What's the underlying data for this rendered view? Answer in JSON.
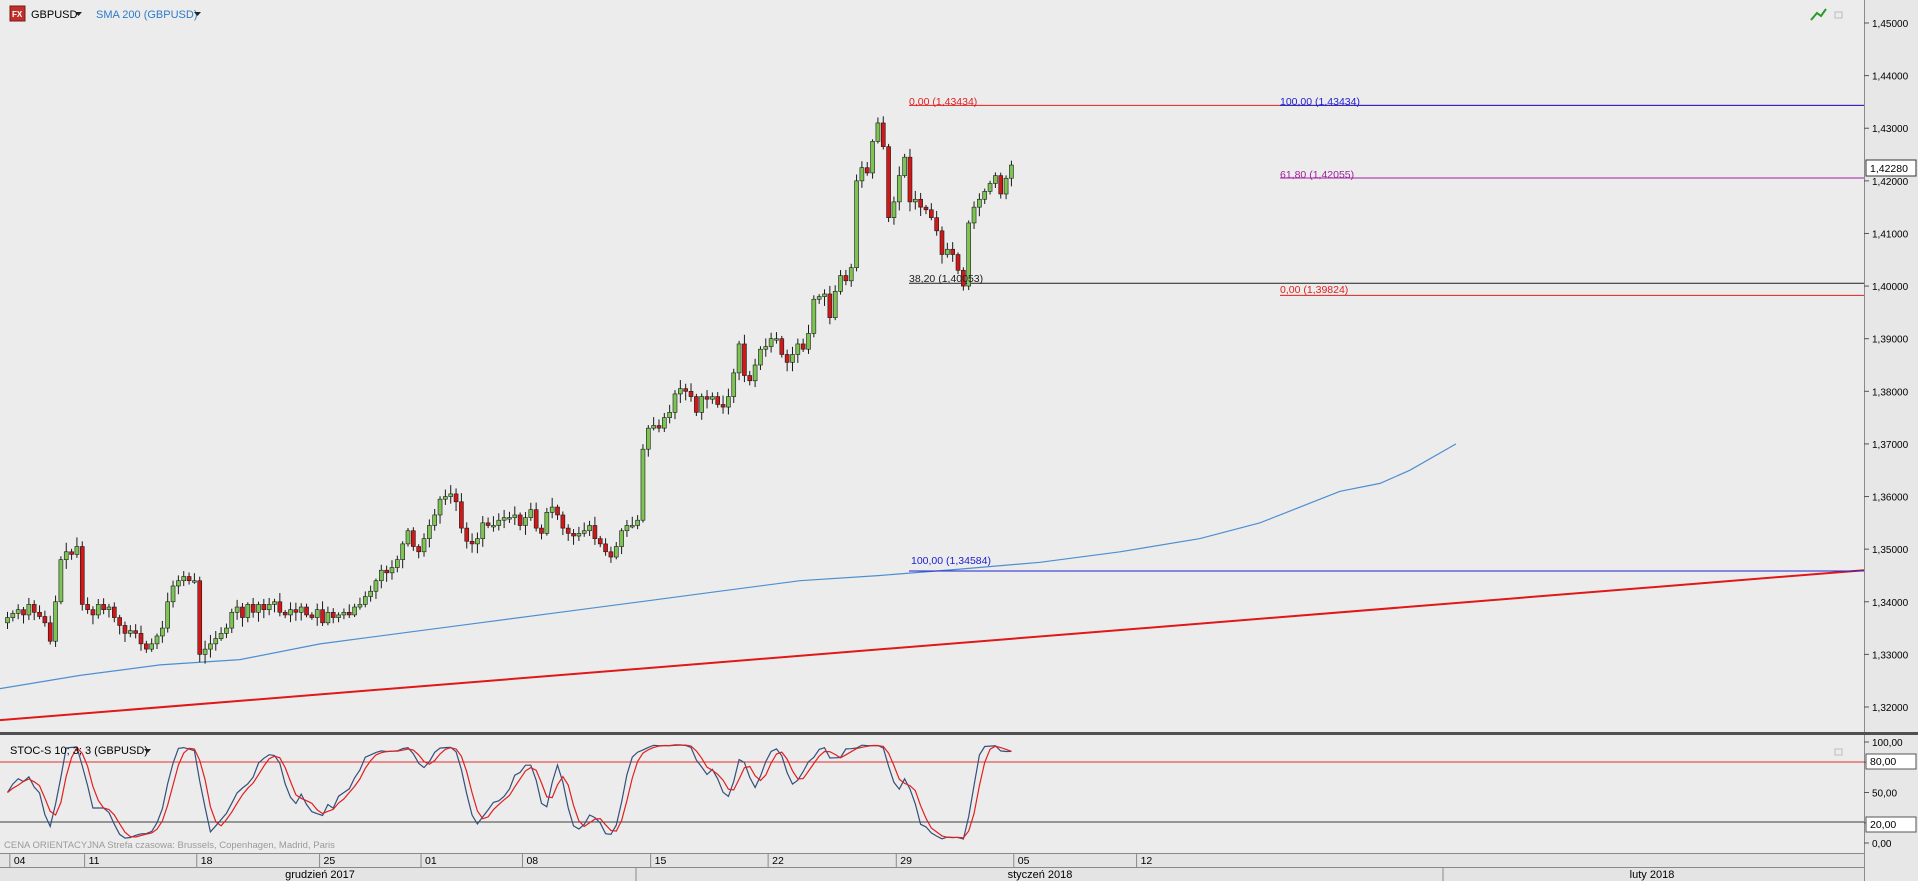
{
  "header": {
    "fx_badge": "FX",
    "symbol": "GBPUSD",
    "indicator_label": "SMA 200 (GBPUSD)",
    "current_price": "1,42280"
  },
  "price_axis": {
    "ticks": [
      "1,45000",
      "1,44000",
      "1,43000",
      "1,42000",
      "1,41000",
      "1,40000",
      "1,39000",
      "1,38000",
      "1,37000",
      "1,36000",
      "1,35000",
      "1,34000",
      "1,33000",
      "1,32000"
    ]
  },
  "fib": {
    "top_left": "0,00 (1,43434)",
    "top_right": "100,00 (1,43434)",
    "level_618": "61,80 (1,42055)",
    "level_382": "38,20 (1,40053)",
    "level_0_low": "0,00 (1,39824)",
    "level_100_low": "100,00 (1,34584)"
  },
  "stoch": {
    "label": "STOC-S 10; 3; 3 (GBPUSD)",
    "ticks": [
      "100,00",
      "80,00",
      "50,00",
      "20,00",
      "0,00"
    ],
    "level_high": "80,00",
    "level_low": "20,00"
  },
  "footer": {
    "info": "CENA ORIENTACYJNA   Strefa czasowa: Brussels, Copenhagen, Madrid, Paris",
    "days": [
      {
        "label": "04",
        "bar": 1
      },
      {
        "label": "11",
        "bar": 15
      },
      {
        "label": "18",
        "bar": 36
      },
      {
        "label": "25",
        "bar": 59
      },
      {
        "label": "01",
        "bar": 78
      },
      {
        "label": "08",
        "bar": 97
      },
      {
        "label": "15",
        "bar": 121
      },
      {
        "label": "22",
        "bar": 143
      },
      {
        "label": "29",
        "bar": 167
      },
      {
        "label": "05",
        "bar": 189
      },
      {
        "label": "12",
        "bar": 212
      }
    ],
    "months": [
      "grudzień 2017",
      "styczeń 2018",
      "luty 2018"
    ]
  },
  "chart_data": {
    "type": "candlestick",
    "symbol": "GBPUSD",
    "ylim": [
      1.314,
      1.455
    ],
    "closes": [
      1.337,
      1.3378,
      1.3385,
      1.3375,
      1.3395,
      1.338,
      1.3372,
      1.336,
      1.3325,
      1.34,
      1.348,
      1.3495,
      1.349,
      1.3505,
      1.3395,
      1.3385,
      1.3375,
      1.3395,
      1.3385,
      1.339,
      1.337,
      1.3355,
      1.334,
      1.3345,
      1.334,
      1.332,
      1.331,
      1.332,
      1.3335,
      1.335,
      1.34,
      1.343,
      1.344,
      1.3448,
      1.344,
      1.344,
      1.33,
      1.331,
      1.332,
      1.333,
      1.334,
      1.335,
      1.338,
      1.339,
      1.337,
      1.3395,
      1.338,
      1.3395,
      1.3385,
      1.3395,
      1.34,
      1.338,
      1.3375,
      1.3385,
      1.338,
      1.339,
      1.3375,
      1.337,
      1.3385,
      1.336,
      1.338,
      1.337,
      1.3375,
      1.338,
      1.3375,
      1.339,
      1.3395,
      1.341,
      1.342,
      1.344,
      1.346,
      1.3455,
      1.3465,
      1.348,
      1.351,
      1.3535,
      1.3505,
      1.3495,
      1.352,
      1.3545,
      1.3565,
      1.3595,
      1.36,
      1.3605,
      1.359,
      1.354,
      1.3515,
      1.351,
      1.352,
      1.355,
      1.3545,
      1.3545,
      1.3555,
      1.356,
      1.356,
      1.3565,
      1.3545,
      1.356,
      1.3575,
      1.354,
      1.353,
      1.357,
      1.358,
      1.3565,
      1.354,
      1.353,
      1.3525,
      1.353,
      1.3535,
      1.3545,
      1.352,
      1.351,
      1.3495,
      1.3485,
      1.3505,
      1.3535,
      1.3545,
      1.3545,
      1.3555,
      1.369,
      1.373,
      1.3735,
      1.373,
      1.375,
      1.376,
      1.3795,
      1.3805,
      1.38,
      1.379,
      1.376,
      1.379,
      1.3785,
      1.379,
      1.3775,
      1.377,
      1.379,
      1.3835,
      1.389,
      1.383,
      1.382,
      1.385,
      1.388,
      1.3885,
      1.39,
      1.39,
      1.387,
      1.3855,
      1.387,
      1.389,
      1.388,
      1.391,
      1.3975,
      1.398,
      1.3985,
      1.394,
      1.399,
      1.402,
      1.401,
      1.4035,
      1.42,
      1.4225,
      1.4215,
      1.4275,
      1.431,
      1.4265,
      1.413,
      1.416,
      1.421,
      1.4245,
      1.416,
      1.4165,
      1.415,
      1.4145,
      1.413,
      1.4105,
      1.406,
      1.407,
      1.406,
      1.403,
      1.4,
      1.412,
      1.415,
      1.4165,
      1.418,
      1.4195,
      1.421,
      1.4175,
      1.4205,
      1.423
    ]
  }
}
